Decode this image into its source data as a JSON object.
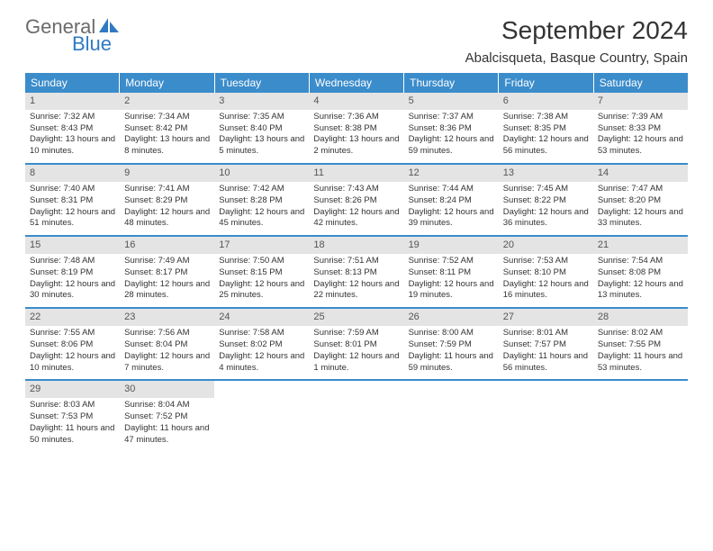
{
  "logo": {
    "text1": "General",
    "text2": "Blue",
    "icon_color": "#2f7ac4"
  },
  "title": "September 2024",
  "location": "Abalcisqueta, Basque Country, Spain",
  "weekday_bg": "#3b8ccb",
  "daynum_bg": "#e4e4e4",
  "weekdays": [
    "Sunday",
    "Monday",
    "Tuesday",
    "Wednesday",
    "Thursday",
    "Friday",
    "Saturday"
  ],
  "weeks": [
    [
      {
        "n": "1",
        "sr": "7:32 AM",
        "ss": "8:43 PM",
        "dl": "13 hours and 10 minutes."
      },
      {
        "n": "2",
        "sr": "7:34 AM",
        "ss": "8:42 PM",
        "dl": "13 hours and 8 minutes."
      },
      {
        "n": "3",
        "sr": "7:35 AM",
        "ss": "8:40 PM",
        "dl": "13 hours and 5 minutes."
      },
      {
        "n": "4",
        "sr": "7:36 AM",
        "ss": "8:38 PM",
        "dl": "13 hours and 2 minutes."
      },
      {
        "n": "5",
        "sr": "7:37 AM",
        "ss": "8:36 PM",
        "dl": "12 hours and 59 minutes."
      },
      {
        "n": "6",
        "sr": "7:38 AM",
        "ss": "8:35 PM",
        "dl": "12 hours and 56 minutes."
      },
      {
        "n": "7",
        "sr": "7:39 AM",
        "ss": "8:33 PM",
        "dl": "12 hours and 53 minutes."
      }
    ],
    [
      {
        "n": "8",
        "sr": "7:40 AM",
        "ss": "8:31 PM",
        "dl": "12 hours and 51 minutes."
      },
      {
        "n": "9",
        "sr": "7:41 AM",
        "ss": "8:29 PM",
        "dl": "12 hours and 48 minutes."
      },
      {
        "n": "10",
        "sr": "7:42 AM",
        "ss": "8:28 PM",
        "dl": "12 hours and 45 minutes."
      },
      {
        "n": "11",
        "sr": "7:43 AM",
        "ss": "8:26 PM",
        "dl": "12 hours and 42 minutes."
      },
      {
        "n": "12",
        "sr": "7:44 AM",
        "ss": "8:24 PM",
        "dl": "12 hours and 39 minutes."
      },
      {
        "n": "13",
        "sr": "7:45 AM",
        "ss": "8:22 PM",
        "dl": "12 hours and 36 minutes."
      },
      {
        "n": "14",
        "sr": "7:47 AM",
        "ss": "8:20 PM",
        "dl": "12 hours and 33 minutes."
      }
    ],
    [
      {
        "n": "15",
        "sr": "7:48 AM",
        "ss": "8:19 PM",
        "dl": "12 hours and 30 minutes."
      },
      {
        "n": "16",
        "sr": "7:49 AM",
        "ss": "8:17 PM",
        "dl": "12 hours and 28 minutes."
      },
      {
        "n": "17",
        "sr": "7:50 AM",
        "ss": "8:15 PM",
        "dl": "12 hours and 25 minutes."
      },
      {
        "n": "18",
        "sr": "7:51 AM",
        "ss": "8:13 PM",
        "dl": "12 hours and 22 minutes."
      },
      {
        "n": "19",
        "sr": "7:52 AM",
        "ss": "8:11 PM",
        "dl": "12 hours and 19 minutes."
      },
      {
        "n": "20",
        "sr": "7:53 AM",
        "ss": "8:10 PM",
        "dl": "12 hours and 16 minutes."
      },
      {
        "n": "21",
        "sr": "7:54 AM",
        "ss": "8:08 PM",
        "dl": "12 hours and 13 minutes."
      }
    ],
    [
      {
        "n": "22",
        "sr": "7:55 AM",
        "ss": "8:06 PM",
        "dl": "12 hours and 10 minutes."
      },
      {
        "n": "23",
        "sr": "7:56 AM",
        "ss": "8:04 PM",
        "dl": "12 hours and 7 minutes."
      },
      {
        "n": "24",
        "sr": "7:58 AM",
        "ss": "8:02 PM",
        "dl": "12 hours and 4 minutes."
      },
      {
        "n": "25",
        "sr": "7:59 AM",
        "ss": "8:01 PM",
        "dl": "12 hours and 1 minute."
      },
      {
        "n": "26",
        "sr": "8:00 AM",
        "ss": "7:59 PM",
        "dl": "11 hours and 59 minutes."
      },
      {
        "n": "27",
        "sr": "8:01 AM",
        "ss": "7:57 PM",
        "dl": "11 hours and 56 minutes."
      },
      {
        "n": "28",
        "sr": "8:02 AM",
        "ss": "7:55 PM",
        "dl": "11 hours and 53 minutes."
      }
    ],
    [
      {
        "n": "29",
        "sr": "8:03 AM",
        "ss": "7:53 PM",
        "dl": "11 hours and 50 minutes."
      },
      {
        "n": "30",
        "sr": "8:04 AM",
        "ss": "7:52 PM",
        "dl": "11 hours and 47 minutes."
      },
      null,
      null,
      null,
      null,
      null
    ]
  ],
  "labels": {
    "sunrise": "Sunrise:",
    "sunset": "Sunset:",
    "daylight": "Daylight:"
  }
}
